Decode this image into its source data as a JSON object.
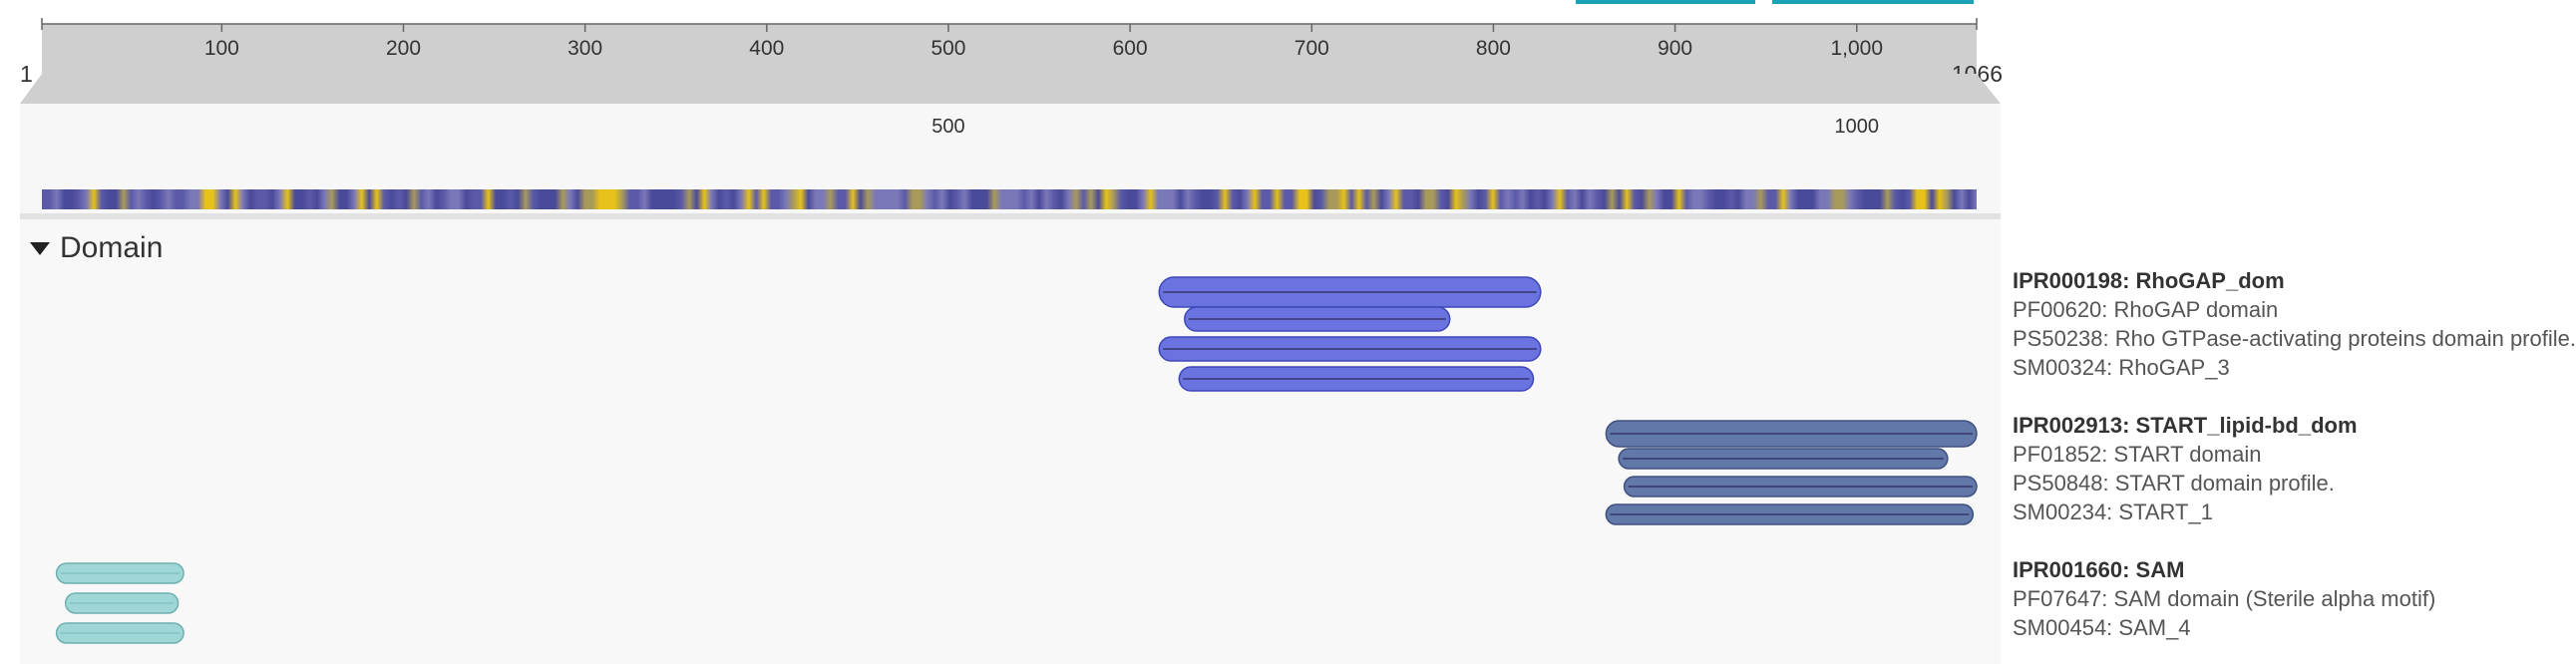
{
  "ruler": {
    "start_label": "1",
    "end_label": "1066",
    "length": 1066,
    "ticks": [
      {
        "pos": 100,
        "label": "100"
      },
      {
        "pos": 200,
        "label": "200"
      },
      {
        "pos": 300,
        "label": "300"
      },
      {
        "pos": 400,
        "label": "400"
      },
      {
        "pos": 500,
        "label": "500"
      },
      {
        "pos": 600,
        "label": "600"
      },
      {
        "pos": 700,
        "label": "700"
      },
      {
        "pos": 800,
        "label": "800"
      },
      {
        "pos": 900,
        "label": "900"
      },
      {
        "pos": 1000,
        "label": "1,000"
      }
    ],
    "zoom_ticks": [
      {
        "pos": 500,
        "label": "500"
      },
      {
        "pos": 1000,
        "label": "1000"
      }
    ]
  },
  "colors": {
    "accent": "#1aa3b8",
    "rhogap": "#6a73e0",
    "start": "#6278a8",
    "sam": "#9fd6d6"
  },
  "section": {
    "title": "Domain"
  },
  "entries": [
    {
      "id": "rhogap",
      "color": "#6a73e0",
      "stroke": "#3d47b8",
      "header": "IPR000198: RhoGAP_dom",
      "matches": [
        {
          "label": "PF00620: RhoGAP domain"
        },
        {
          "label": "PS50238: Rho GTPase-activating proteins domain profile."
        },
        {
          "label": "SM00324: RhoGAP_3"
        }
      ],
      "tracks": [
        {
          "start": 616,
          "end": 826
        },
        {
          "start": 630,
          "end": 776
        },
        {
          "start": 616,
          "end": 826
        },
        {
          "start": 627,
          "end": 822
        }
      ]
    },
    {
      "id": "start",
      "color": "#6278a8",
      "stroke": "#3e5080",
      "header": "IPR002913: START_lipid-bd_dom",
      "matches": [
        {
          "label": "PF01852: START domain"
        },
        {
          "label": "PS50848: START domain profile."
        },
        {
          "label": "SM00234: START_1"
        }
      ],
      "tracks": [
        {
          "start": 862,
          "end": 1066
        },
        {
          "start": 869,
          "end": 1050
        },
        {
          "start": 872,
          "end": 1066
        },
        {
          "start": 862,
          "end": 1064
        }
      ]
    },
    {
      "id": "sam",
      "color": "#9fd6d6",
      "stroke": "#6fb0b0",
      "header": "IPR001660: SAM",
      "matches": [
        {
          "label": "PF07647: SAM domain (Sterile alpha motif)"
        },
        {
          "label": "SM00454: SAM_4"
        }
      ],
      "tracks": [
        {
          "start": 9,
          "end": 79
        },
        {
          "start": 14,
          "end": 76
        },
        {
          "start": 9,
          "end": 79
        }
      ]
    }
  ]
}
